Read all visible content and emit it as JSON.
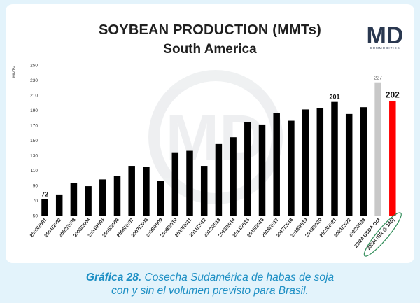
{
  "title": "SOYBEAN PRODUCTION (MMTs)",
  "subtitle": "South America",
  "logo": {
    "text": "MD",
    "sub": "COMMODITIES"
  },
  "caption": {
    "label": "Gráfica 28.",
    "line1": "Cosecha Sudamérica de habas de soja",
    "line2": "con y sin el volumen previsto para Brasil."
  },
  "colors": {
    "bar": "#000000",
    "usda_bar": "#c8c8c8",
    "forecast_bar": "#ff0000",
    "highlight_ellipse": "#2e8b57",
    "caption": "#1d8fc4",
    "background": "#e3f3fb"
  },
  "chart_data": {
    "type": "bar",
    "title": "SOYBEAN PRODUCTION (MMTs)",
    "subtitle": "South America",
    "ylabel": "MMTs",
    "ylim": [
      50,
      250
    ],
    "yticks": [
      50,
      70,
      90,
      110,
      130,
      150,
      170,
      190,
      210,
      230,
      250
    ],
    "grid": false,
    "categories": [
      "2000/2001",
      "2001/2002",
      "2002/2003",
      "2003/2004",
      "2004/2005",
      "2005/2006",
      "2006/2007",
      "2007/2008",
      "2008/2009",
      "2009/2010",
      "2010/2011",
      "2011/2012",
      "2012/2013",
      "2013/2014",
      "2014/2015",
      "2015/2016",
      "2016/2017",
      "2017/2018",
      "2018/2019",
      "2019/2020",
      "2020/2021",
      "2021/2022",
      "2022/2023",
      "23/24 USDA Oct",
      "23/24 (BR @ 140)"
    ],
    "values": [
      72,
      78,
      93,
      89,
      98,
      103,
      116,
      115,
      96,
      134,
      136,
      116,
      145,
      154,
      174,
      171,
      186,
      176,
      191,
      193,
      201,
      185,
      194,
      227,
      202
    ],
    "data_labels": [
      {
        "index": 0,
        "text": "72"
      },
      {
        "index": 20,
        "text": "201"
      },
      {
        "index": 23,
        "text": "227"
      },
      {
        "index": 24,
        "text": "202"
      }
    ],
    "highlight_index": 24
  }
}
